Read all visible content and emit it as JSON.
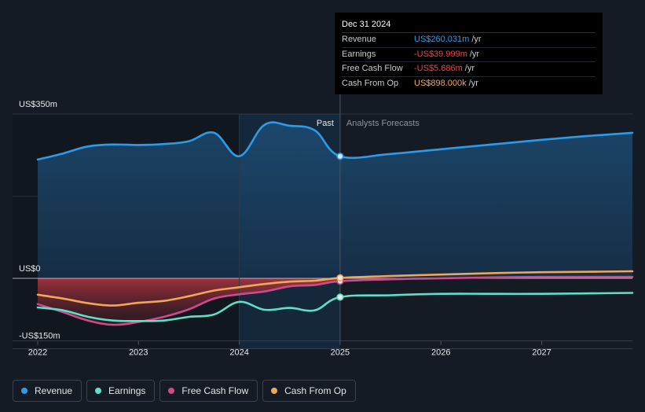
{
  "colors": {
    "revenue": "#2d9be8",
    "earnings": "#5ee0c8",
    "fcf": "#d0498a",
    "cfo": "#eea85a",
    "background": "#151b24"
  },
  "tooltip": {
    "date": "Dec 31 2024",
    "rows": [
      {
        "label": "Revenue",
        "value": "US$260.031m",
        "unit": "/yr",
        "color": "#2d9be8"
      },
      {
        "label": "Earnings",
        "value": "-US$39.999m",
        "unit": "/yr",
        "color": "#e04848"
      },
      {
        "label": "Free Cash Flow",
        "value": "-US$5.686m",
        "unit": "/yr",
        "color": "#e04848"
      },
      {
        "label": "Cash From Op",
        "value": "US$898.000k",
        "unit": "/yr",
        "color": "#eea85a"
      }
    ]
  },
  "legend": [
    {
      "label": "Revenue",
      "color": "#2d9be8"
    },
    {
      "label": "Earnings",
      "color": "#5ee0c8"
    },
    {
      "label": "Free Cash Flow",
      "color": "#d0498a"
    },
    {
      "label": "Cash From Op",
      "color": "#eea85a"
    }
  ],
  "chart_data": {
    "type": "line",
    "y_tick_labels": [
      "US$350m",
      "US$0",
      "-US$150m"
    ],
    "y_ticks": [
      350,
      0,
      -150
    ],
    "ylim": [
      -150,
      350
    ],
    "xlim": [
      2022.0,
      2027.9
    ],
    "x_tick_labels": [
      "2022",
      "2023",
      "2024",
      "2025",
      "2026",
      "2027"
    ],
    "x_ticks": [
      2022,
      2023,
      2024,
      2025,
      2026,
      2027
    ],
    "past_label": "Past",
    "forecast_label": "Analysts Forecasts",
    "highlight_range": [
      2024.0,
      2025.0
    ],
    "divider_x": 2025.0,
    "grid": true,
    "legend_position": "bottom-left",
    "series": [
      {
        "name": "Revenue",
        "key": "revenue",
        "past": [
          [
            2022.0,
            253
          ],
          [
            2022.25,
            266
          ],
          [
            2022.5,
            281
          ],
          [
            2022.75,
            285
          ],
          [
            2023.0,
            284
          ],
          [
            2023.25,
            286
          ],
          [
            2023.5,
            292
          ],
          [
            2023.75,
            310
          ],
          [
            2024.0,
            260
          ],
          [
            2024.25,
            327
          ],
          [
            2024.5,
            325
          ],
          [
            2024.75,
            315
          ],
          [
            2025.0,
            260
          ]
        ],
        "forecast": [
          [
            2025.0,
            260
          ],
          [
            2025.5,
            265
          ],
          [
            2026.0,
            275
          ],
          [
            2026.5,
            285
          ],
          [
            2027.0,
            295
          ],
          [
            2027.5,
            304
          ],
          [
            2027.9,
            310
          ]
        ]
      },
      {
        "name": "Earnings",
        "key": "earnings",
        "past": [
          [
            2022.0,
            -62
          ],
          [
            2022.25,
            -68
          ],
          [
            2022.5,
            -82
          ],
          [
            2022.75,
            -90
          ],
          [
            2023.0,
            -91
          ],
          [
            2023.25,
            -90
          ],
          [
            2023.5,
            -82
          ],
          [
            2023.75,
            -77
          ],
          [
            2024.0,
            -50
          ],
          [
            2024.25,
            -67
          ],
          [
            2024.5,
            -63
          ],
          [
            2024.75,
            -68
          ],
          [
            2025.0,
            -40
          ]
        ],
        "forecast": [
          [
            2025.0,
            -40
          ],
          [
            2025.5,
            -36
          ],
          [
            2026.0,
            -33
          ],
          [
            2026.5,
            -33
          ],
          [
            2027.0,
            -33
          ],
          [
            2027.5,
            -32
          ],
          [
            2027.9,
            -31
          ]
        ]
      },
      {
        "name": "Free Cash Flow",
        "key": "fcf",
        "past": [
          [
            2022.0,
            -55
          ],
          [
            2022.25,
            -72
          ],
          [
            2022.5,
            -90
          ],
          [
            2022.75,
            -99
          ],
          [
            2023.0,
            -93
          ],
          [
            2023.25,
            -82
          ],
          [
            2023.5,
            -66
          ],
          [
            2023.75,
            -43
          ],
          [
            2024.0,
            -34
          ],
          [
            2024.25,
            -28
          ],
          [
            2024.5,
            -17
          ],
          [
            2024.75,
            -14
          ],
          [
            2025.0,
            -6
          ]
        ],
        "forecast": [
          [
            2025.0,
            -6
          ],
          [
            2025.5,
            -2
          ],
          [
            2026.0,
            0
          ],
          [
            2026.5,
            2
          ],
          [
            2027.0,
            3
          ],
          [
            2027.5,
            3
          ],
          [
            2027.9,
            3
          ]
        ]
      },
      {
        "name": "Cash From Op",
        "key": "cfo",
        "past": [
          [
            2022.0,
            -35
          ],
          [
            2022.25,
            -43
          ],
          [
            2022.5,
            -53
          ],
          [
            2022.75,
            -58
          ],
          [
            2023.0,
            -52
          ],
          [
            2023.25,
            -48
          ],
          [
            2023.5,
            -38
          ],
          [
            2023.75,
            -26
          ],
          [
            2024.0,
            -19
          ],
          [
            2024.25,
            -12
          ],
          [
            2024.5,
            -7
          ],
          [
            2024.75,
            -5
          ],
          [
            2025.0,
            1
          ]
        ],
        "forecast": [
          [
            2025.0,
            1
          ],
          [
            2025.5,
            5
          ],
          [
            2026.0,
            8
          ],
          [
            2026.5,
            11
          ],
          [
            2027.0,
            13
          ],
          [
            2027.5,
            14
          ],
          [
            2027.9,
            15
          ]
        ]
      }
    ]
  }
}
